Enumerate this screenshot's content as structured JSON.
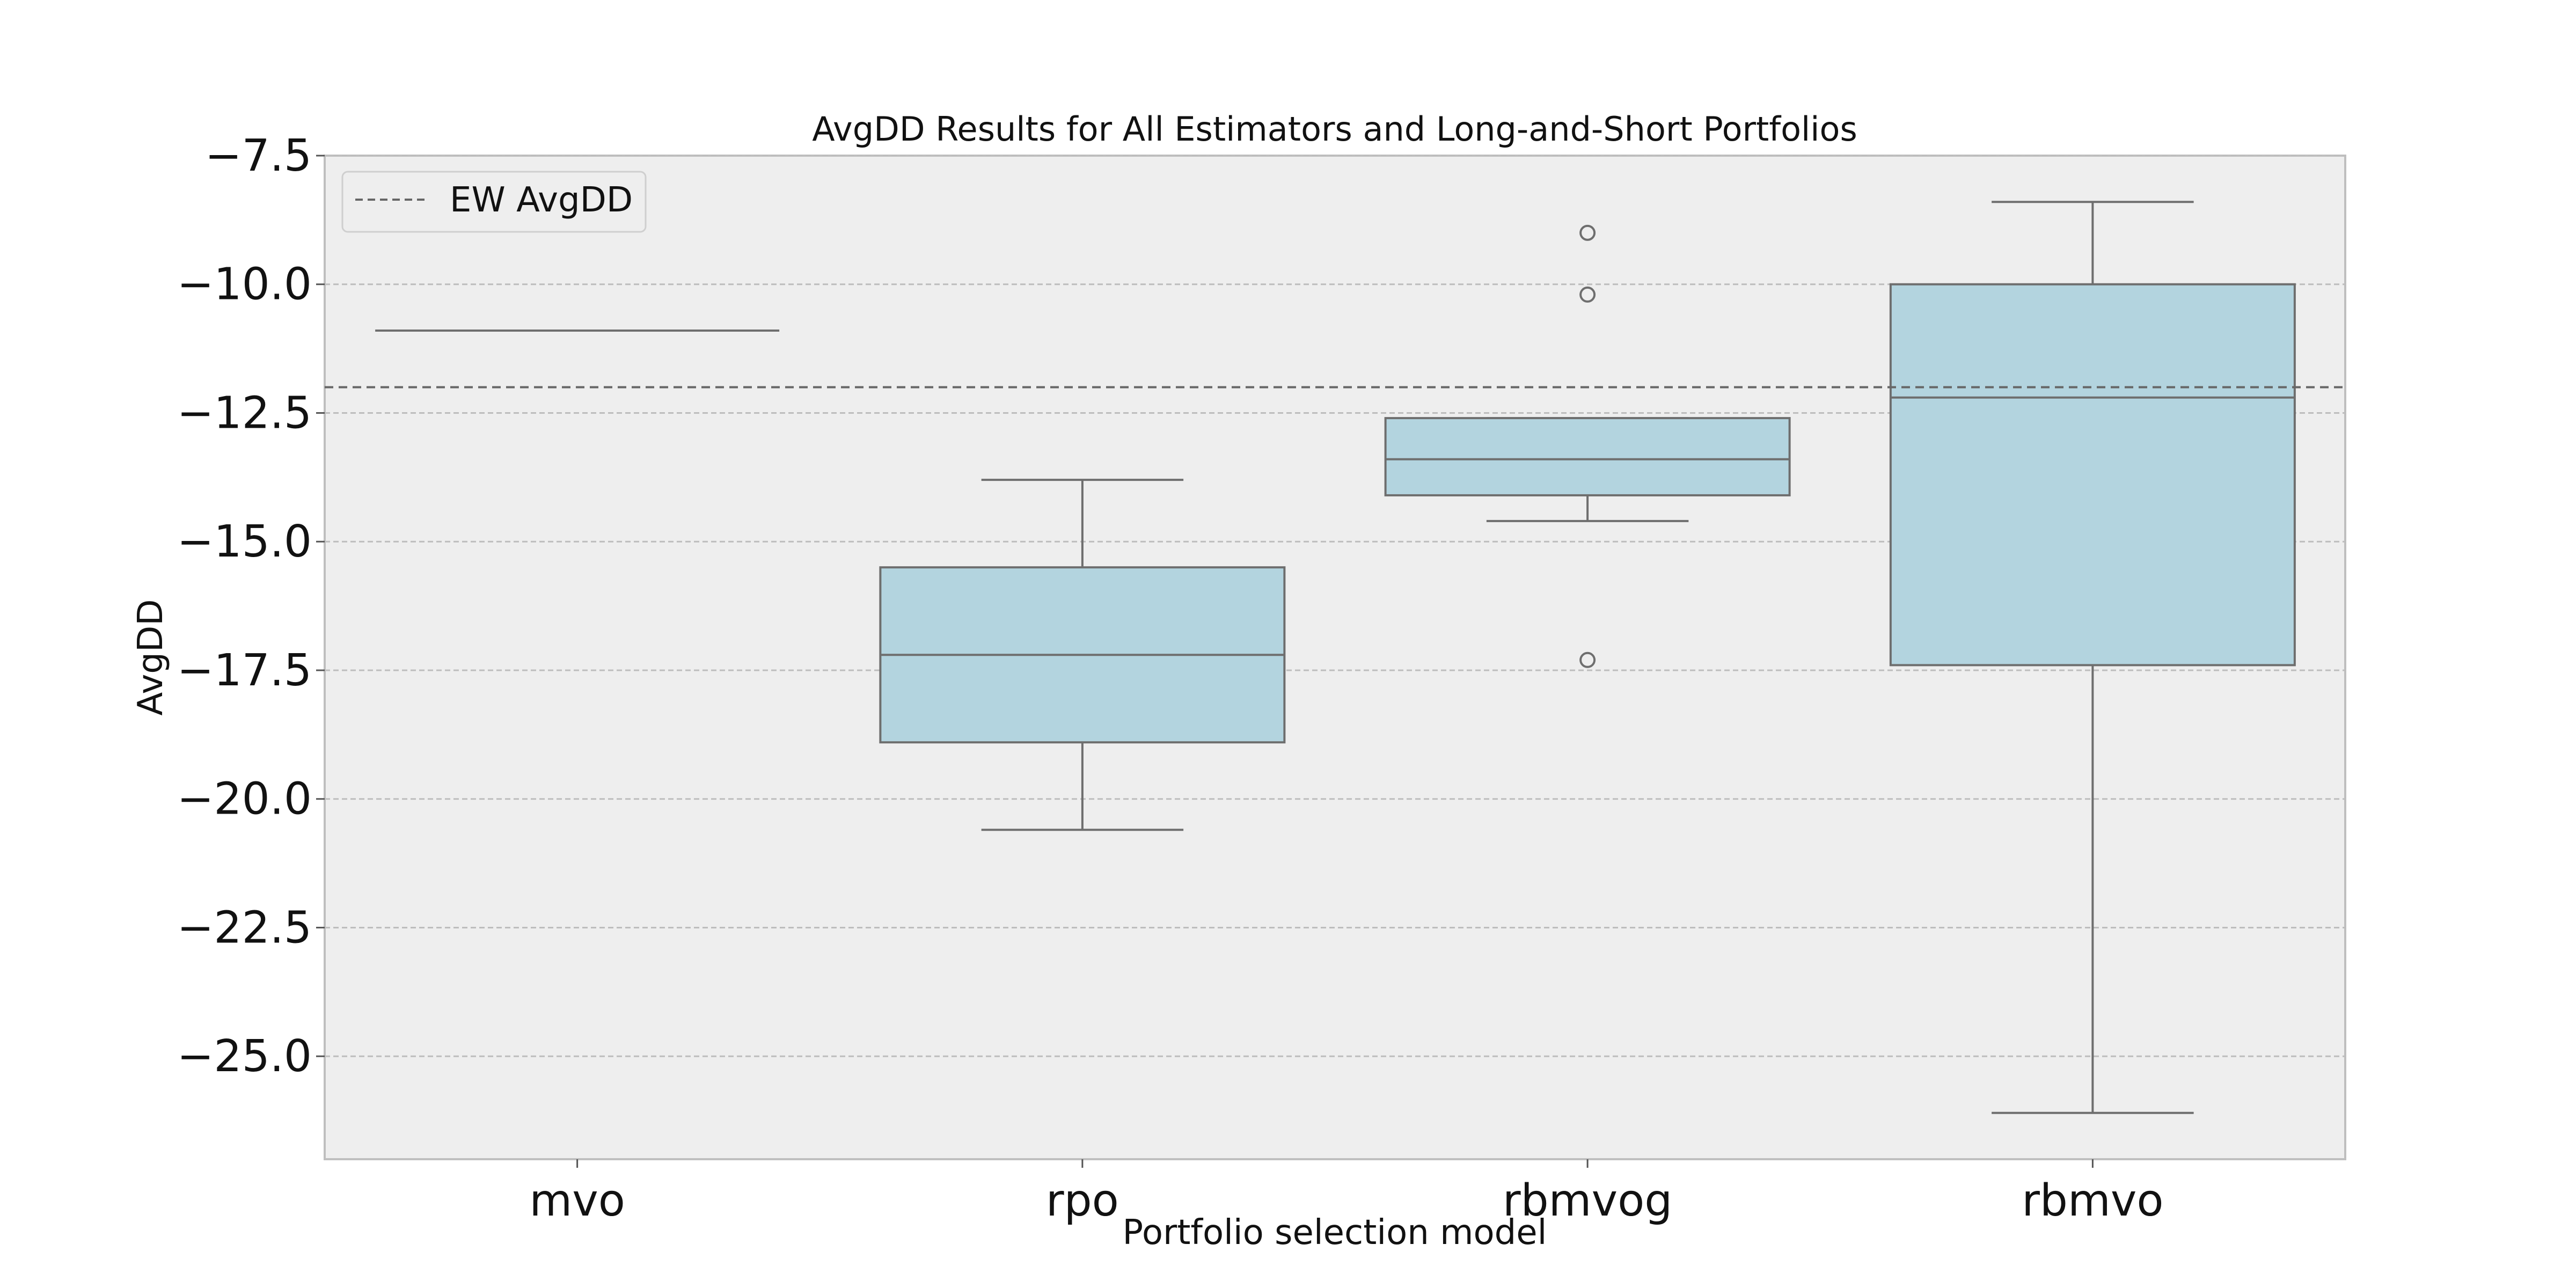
{
  "chart_data": {
    "type": "box",
    "title": "AvgDD Results for All Estimators and Long-and-Short Portfolios",
    "xlabel": "Portfolio selection model",
    "ylabel": "AvgDD",
    "ylim": [
      -27.0,
      -7.5
    ],
    "yticks": [
      -7.5,
      -10.0,
      -12.5,
      -15.0,
      -17.5,
      -20.0,
      -22.5,
      -25.0
    ],
    "ytick_labels": [
      "−7.5",
      "−10.0",
      "−12.5",
      "−15.0",
      "−17.5",
      "−20.0",
      "−22.5",
      "−25.0"
    ],
    "grid": true,
    "legend_placement": "top-left",
    "categories": [
      "mvo",
      "rpo",
      "rbmvog",
      "rbmvo"
    ],
    "boxes": [
      {
        "category": "mvo",
        "whisker_low": -10.9,
        "q1": -10.9,
        "median": -10.9,
        "q3": -10.9,
        "whisker_high": -10.9,
        "outliers": []
      },
      {
        "category": "rpo",
        "whisker_low": -20.6,
        "q1": -18.9,
        "median": -17.2,
        "q3": -15.5,
        "whisker_high": -13.8,
        "outliers": []
      },
      {
        "category": "rbmvog",
        "whisker_low": -14.6,
        "q1": -14.1,
        "median": -13.4,
        "q3": -12.6,
        "whisker_high": -12.6,
        "outliers": [
          -9.0,
          -10.2,
          -17.3
        ]
      },
      {
        "category": "rbmvo",
        "whisker_low": -26.1,
        "q1": -17.4,
        "median": -12.2,
        "q3": -10.0,
        "whisker_high": -8.4,
        "outliers": []
      }
    ],
    "reference_line": {
      "name": "EW AvgDD",
      "value": -12.0
    },
    "colors": {
      "box_fill": "#b3d4df",
      "box_edge": "#6e6e6e",
      "plot_bg": "#eeeeee",
      "grid": "#bdbdbd",
      "reference": "#666666"
    }
  }
}
